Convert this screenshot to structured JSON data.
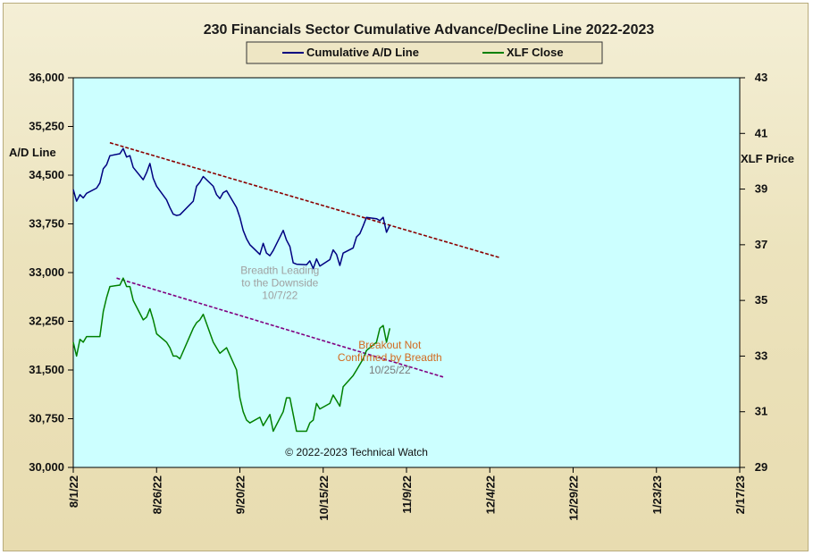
{
  "chart_data": {
    "type": "line",
    "title": "230 Financials  Sector Cumulative  Advance/Decline  Line  2022-2023",
    "ylabel": "A/D Line",
    "y2label": "XLF Price",
    "xlabel": "",
    "ylim": [
      30000,
      36000
    ],
    "y2lim": [
      29,
      43
    ],
    "x_range": [
      "2022-08-01",
      "2023-02-17"
    ],
    "yticks": [
      "36,000",
      "35,250",
      "34,500",
      "33,750",
      "33,000",
      "32,250",
      "31,500",
      "30,750",
      "30,000"
    ],
    "y2ticks": [
      "43",
      "41",
      "39",
      "37",
      "35",
      "33",
      "31",
      "29"
    ],
    "xticks": [
      "8/1/22",
      "8/26/22",
      "9/20/22",
      "10/15/22",
      "11/9/22",
      "12/4/22",
      "12/29/22",
      "1/23/23",
      "2/17/23"
    ],
    "plot_background": "#ccffff",
    "grid": false,
    "legend_position": "top-center",
    "series": [
      {
        "name": "Cumulative A/D Line",
        "axis": "left",
        "color": "#000080",
        "points": [
          [
            "2022-08-01",
            34280
          ],
          [
            "2022-08-02",
            34100
          ],
          [
            "2022-08-03",
            34200
          ],
          [
            "2022-08-04",
            34150
          ],
          [
            "2022-08-05",
            34220
          ],
          [
            "2022-08-08",
            34300
          ],
          [
            "2022-08-09",
            34380
          ],
          [
            "2022-08-10",
            34600
          ],
          [
            "2022-08-11",
            34660
          ],
          [
            "2022-08-12",
            34800
          ],
          [
            "2022-08-15",
            34830
          ],
          [
            "2022-08-16",
            34910
          ],
          [
            "2022-08-17",
            34780
          ],
          [
            "2022-08-18",
            34800
          ],
          [
            "2022-08-19",
            34620
          ],
          [
            "2022-08-22",
            34430
          ],
          [
            "2022-08-23",
            34540
          ],
          [
            "2022-08-24",
            34680
          ],
          [
            "2022-08-25",
            34450
          ],
          [
            "2022-08-26",
            34330
          ],
          [
            "2022-08-29",
            34120
          ],
          [
            "2022-08-30",
            34000
          ],
          [
            "2022-08-31",
            33900
          ],
          [
            "2022-09-01",
            33880
          ],
          [
            "2022-09-02",
            33890
          ],
          [
            "2022-09-06",
            34100
          ],
          [
            "2022-09-07",
            34330
          ],
          [
            "2022-09-08",
            34390
          ],
          [
            "2022-09-09",
            34480
          ],
          [
            "2022-09-12",
            34330
          ],
          [
            "2022-09-13",
            34200
          ],
          [
            "2022-09-14",
            34140
          ],
          [
            "2022-09-15",
            34230
          ],
          [
            "2022-09-16",
            34260
          ],
          [
            "2022-09-19",
            34000
          ],
          [
            "2022-09-20",
            33850
          ],
          [
            "2022-09-21",
            33650
          ],
          [
            "2022-09-22",
            33520
          ],
          [
            "2022-09-23",
            33430
          ],
          [
            "2022-09-26",
            33280
          ],
          [
            "2022-09-27",
            33450
          ],
          [
            "2022-09-28",
            33300
          ],
          [
            "2022-09-29",
            33260
          ],
          [
            "2022-09-30",
            33340
          ],
          [
            "2022-10-03",
            33650
          ],
          [
            "2022-10-04",
            33500
          ],
          [
            "2022-10-05",
            33400
          ],
          [
            "2022-10-06",
            33150
          ],
          [
            "2022-10-07",
            33130
          ],
          [
            "2022-10-10",
            33120
          ],
          [
            "2022-10-11",
            33180
          ],
          [
            "2022-10-12",
            33060
          ],
          [
            "2022-10-13",
            33210
          ],
          [
            "2022-10-14",
            33100
          ],
          [
            "2022-10-17",
            33200
          ],
          [
            "2022-10-18",
            33350
          ],
          [
            "2022-10-19",
            33280
          ],
          [
            "2022-10-20",
            33110
          ],
          [
            "2022-10-21",
            33300
          ],
          [
            "2022-10-24",
            33380
          ],
          [
            "2022-10-25",
            33550
          ],
          [
            "2022-10-26",
            33600
          ],
          [
            "2022-10-27",
            33720
          ],
          [
            "2022-10-28",
            33850
          ],
          [
            "2022-10-31",
            33830
          ],
          [
            "2022-11-01",
            33800
          ],
          [
            "2022-11-02",
            33850
          ],
          [
            "2022-11-03",
            33620
          ],
          [
            "2022-11-04",
            33730
          ]
        ]
      },
      {
        "name": "XLF Close",
        "axis": "right",
        "color": "#008000",
        "points": [
          [
            "2022-08-01",
            33.5
          ],
          [
            "2022-08-02",
            33.0
          ],
          [
            "2022-08-03",
            33.6
          ],
          [
            "2022-08-04",
            33.5
          ],
          [
            "2022-08-05",
            33.7
          ],
          [
            "2022-08-08",
            33.7
          ],
          [
            "2022-08-09",
            33.7
          ],
          [
            "2022-08-10",
            34.6
          ],
          [
            "2022-08-11",
            35.1
          ],
          [
            "2022-08-12",
            35.5
          ],
          [
            "2022-08-15",
            35.55
          ],
          [
            "2022-08-16",
            35.8
          ],
          [
            "2022-08-17",
            35.5
          ],
          [
            "2022-08-18",
            35.5
          ],
          [
            "2022-08-19",
            35.0
          ],
          [
            "2022-08-22",
            34.3
          ],
          [
            "2022-08-23",
            34.4
          ],
          [
            "2022-08-24",
            34.7
          ],
          [
            "2022-08-25",
            34.3
          ],
          [
            "2022-08-26",
            33.8
          ],
          [
            "2022-08-29",
            33.5
          ],
          [
            "2022-08-30",
            33.3
          ],
          [
            "2022-08-31",
            33.0
          ],
          [
            "2022-09-01",
            33.0
          ],
          [
            "2022-09-02",
            32.9
          ],
          [
            "2022-09-06",
            34.0
          ],
          [
            "2022-09-07",
            34.2
          ],
          [
            "2022-09-08",
            34.3
          ],
          [
            "2022-09-09",
            34.5
          ],
          [
            "2022-09-12",
            33.5
          ],
          [
            "2022-09-13",
            33.3
          ],
          [
            "2022-09-14",
            33.1
          ],
          [
            "2022-09-15",
            33.2
          ],
          [
            "2022-09-16",
            33.3
          ],
          [
            "2022-09-19",
            32.5
          ],
          [
            "2022-09-20",
            31.5
          ],
          [
            "2022-09-21",
            31.0
          ],
          [
            "2022-09-22",
            30.7
          ],
          [
            "2022-09-23",
            30.6
          ],
          [
            "2022-09-26",
            30.8
          ],
          [
            "2022-09-27",
            30.5
          ],
          [
            "2022-09-28",
            30.7
          ],
          [
            "2022-09-29",
            30.9
          ],
          [
            "2022-09-30",
            30.3
          ],
          [
            "2022-10-03",
            31.0
          ],
          [
            "2022-10-04",
            31.5
          ],
          [
            "2022-10-05",
            31.5
          ],
          [
            "2022-10-06",
            30.9
          ],
          [
            "2022-10-07",
            30.3
          ],
          [
            "2022-10-10",
            30.3
          ],
          [
            "2022-10-11",
            30.6
          ],
          [
            "2022-10-12",
            30.7
          ],
          [
            "2022-10-13",
            31.3
          ],
          [
            "2022-10-14",
            31.1
          ],
          [
            "2022-10-17",
            31.3
          ],
          [
            "2022-10-18",
            31.6
          ],
          [
            "2022-10-19",
            31.4
          ],
          [
            "2022-10-20",
            31.2
          ],
          [
            "2022-10-21",
            31.9
          ],
          [
            "2022-10-24",
            32.3
          ],
          [
            "2022-10-25",
            32.5
          ],
          [
            "2022-10-26",
            32.7
          ],
          [
            "2022-10-27",
            32.9
          ],
          [
            "2022-10-28",
            33.2
          ],
          [
            "2022-10-31",
            33.5
          ],
          [
            "2022-11-01",
            34.0
          ],
          [
            "2022-11-02",
            34.1
          ],
          [
            "2022-11-03",
            33.5
          ],
          [
            "2022-11-04",
            34.0
          ]
        ]
      }
    ],
    "trendlines": [
      {
        "axis": "left",
        "color": "#8b0000",
        "style": "dashed",
        "from": [
          "2022-08-12",
          35000
        ],
        "to": [
          "2022-12-07",
          33230
        ]
      },
      {
        "axis": "right",
        "color": "#800080",
        "style": "dashed",
        "from": [
          "2022-08-14",
          35.8
        ],
        "to": [
          "2022-11-20",
          32.25
        ]
      }
    ],
    "annotations": [
      {
        "id": "breadth",
        "lines": [
          "Breadth Leading",
          "to the Downside",
          "10/7/22"
        ],
        "color": "#a0a0a0",
        "at": [
          "2022-10-02",
          32980
        ]
      },
      {
        "id": "breakout",
        "lines": [
          "Breakout Not",
          "Confirmed  by Breadth",
          "10/25/22"
        ],
        "color": "#d2691e",
        "last_line_color": "#7a7a7a",
        "at": [
          "2022-11-04",
          31830
        ]
      },
      {
        "id": "copyright",
        "lines": [
          "© 2022-2023  Technical Watch"
        ],
        "color": "#111111",
        "at": [
          "2022-10-25",
          30180
        ]
      }
    ]
  }
}
